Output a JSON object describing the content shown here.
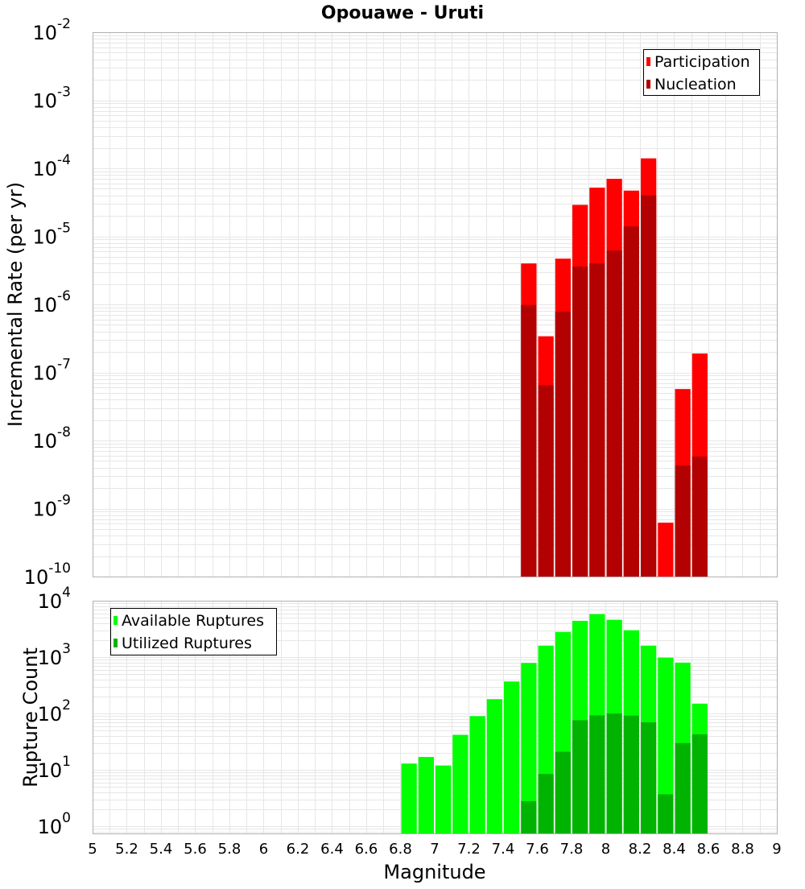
{
  "title": "Opouawe - Uruti",
  "colors": {
    "participation": "#ff0000",
    "nucleation": "#b30000",
    "available": "#00ff00",
    "utilized": "#00b300",
    "grid": "#e6e6e6",
    "frame": "#b0b0b0"
  },
  "chart_data": [
    {
      "type": "bar",
      "scale": "log",
      "ylabel": "Incremental Rate (per yr)",
      "xlabel": "",
      "xlim": [
        5,
        9
      ],
      "ylim": [
        1e-10,
        0.01
      ],
      "yticks": [
        {
          "base": "10",
          "exp": "-10",
          "value": 1e-10
        },
        {
          "base": "10",
          "exp": "-9",
          "value": 1e-09
        },
        {
          "base": "10",
          "exp": "-8",
          "value": 1e-08
        },
        {
          "base": "10",
          "exp": "-7",
          "value": 1e-07
        },
        {
          "base": "10",
          "exp": "-6",
          "value": 1e-06
        },
        {
          "base": "10",
          "exp": "-5",
          "value": 1e-05
        },
        {
          "base": "10",
          "exp": "-4",
          "value": 0.0001
        },
        {
          "base": "10",
          "exp": "-3",
          "value": 0.001
        },
        {
          "base": "10",
          "exp": "-2",
          "value": 0.01
        }
      ],
      "grid": true,
      "legend_position": "top-right",
      "x": [
        7.55,
        7.65,
        7.75,
        7.85,
        7.95,
        8.05,
        8.15,
        8.25,
        8.35,
        8.45,
        8.55
      ],
      "series": [
        {
          "name": "Participation",
          "color_key": "participation",
          "values": [
            4e-06,
            3.4e-07,
            4.7e-06,
            2.9e-05,
            5.2e-05,
            7e-05,
            4.7e-05,
            0.00014,
            6.2e-10,
            5.7e-08,
            1.9e-07
          ]
        },
        {
          "name": "Nucleation",
          "color_key": "nucleation",
          "values": [
            9.8e-07,
            6.5e-08,
            7.8e-07,
            3.6e-06,
            4e-06,
            6.2e-06,
            1.4e-05,
            4e-05,
            null,
            4.3e-09,
            5.8e-09
          ]
        }
      ]
    },
    {
      "type": "bar",
      "scale": "log",
      "ylabel": "Rupture Count",
      "xlabel": "Magnitude",
      "xlim": [
        5,
        9
      ],
      "ylim": [
        0.75,
        10000
      ],
      "yticks": [
        {
          "base": "10",
          "exp": "0",
          "value": 1
        },
        {
          "base": "10",
          "exp": "1",
          "value": 10
        },
        {
          "base": "10",
          "exp": "2",
          "value": 100
        },
        {
          "base": "10",
          "exp": "3",
          "value": 1000
        },
        {
          "base": "10",
          "exp": "4",
          "value": 10000
        }
      ],
      "xticks": [
        "5",
        "5.2",
        "5.4",
        "5.6",
        "5.8",
        "6",
        "6.2",
        "6.4",
        "6.6",
        "6.8",
        "7",
        "7.2",
        "7.4",
        "7.6",
        "7.8",
        "8",
        "8.2",
        "8.4",
        "8.6",
        "8.8",
        "9"
      ],
      "grid": true,
      "legend_position": "top-left",
      "x": [
        6.85,
        6.95,
        7.05,
        7.15,
        7.25,
        7.35,
        7.45,
        7.55,
        7.65,
        7.75,
        7.85,
        7.95,
        8.05,
        8.15,
        8.25,
        8.35,
        8.45,
        8.55
      ],
      "series": [
        {
          "name": "Available Ruptures",
          "color_key": "available",
          "values": [
            13,
            17,
            12,
            42,
            90,
            180,
            370,
            790,
            1600,
            2800,
            4400,
            5800,
            4600,
            3000,
            1600,
            980,
            800,
            150
          ]
        },
        {
          "name": "Utilized Ruptures",
          "color_key": "utilized",
          "values": [
            null,
            null,
            null,
            null,
            null,
            null,
            null,
            2.8,
            8.5,
            21,
            76,
            93,
            100,
            92,
            70,
            3.7,
            30,
            43
          ]
        }
      ]
    }
  ]
}
